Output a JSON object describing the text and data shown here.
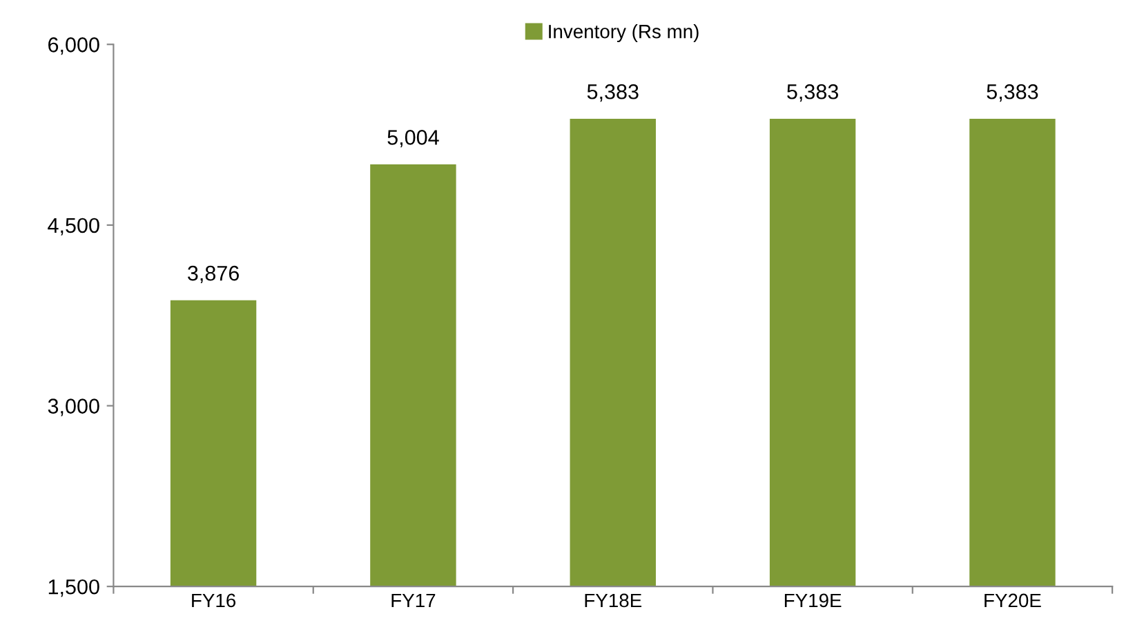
{
  "chart_data": {
    "type": "bar",
    "categories": [
      "FY16",
      "FY17",
      "FY18E",
      "FY19E",
      "FY20E"
    ],
    "series": [
      {
        "name": "Inventory (Rs mn)",
        "color": "#7f9b36",
        "values": [
          3876,
          5004,
          5383,
          5383,
          5383
        ],
        "value_labels": [
          "3,876",
          "5,004",
          "5,383",
          "5,383",
          "5,383"
        ]
      }
    ],
    "ylim": [
      1500,
      6000
    ],
    "yticks": [
      {
        "value": 1500,
        "label": "1,500"
      },
      {
        "value": 3000,
        "label": "3,000"
      },
      {
        "value": 4500,
        "label": "4,500"
      },
      {
        "value": 6000,
        "label": "6,000"
      }
    ],
    "grid": false,
    "legend": "top"
  }
}
